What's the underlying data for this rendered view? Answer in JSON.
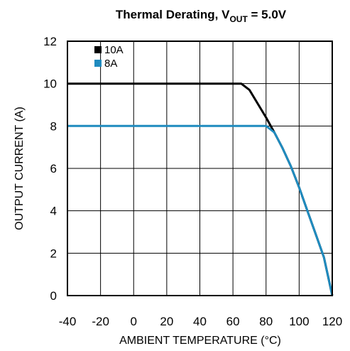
{
  "chart_data": {
    "type": "line",
    "title": {
      "main": "Thermal Derating, V",
      "sub": "OUT",
      "tail": " = 5.0V"
    },
    "xlabel": "AMBIENT TEMPERATURE (°C)",
    "ylabel": "OUTPUT CURRENT (A)",
    "xlim": [
      -40,
      120
    ],
    "ylim": [
      0,
      12
    ],
    "xticks": [
      -40,
      -20,
      0,
      20,
      40,
      60,
      80,
      100,
      120
    ],
    "yticks": [
      0,
      2,
      4,
      6,
      8,
      10,
      12
    ],
    "grid": true,
    "legend_position": "top-left",
    "series": [
      {
        "name": "10A",
        "color": "#000000",
        "x": [
          -40,
          65,
          70,
          75,
          80,
          85,
          90,
          95,
          100,
          105,
          110,
          115,
          120
        ],
        "y": [
          10,
          10,
          9.7,
          9.05,
          8.4,
          7.7,
          6.95,
          6.1,
          5.1,
          4.0,
          2.9,
          1.8,
          0
        ]
      },
      {
        "name": "8A",
        "color": "#1f8bbf",
        "x": [
          -40,
          80,
          85,
          90,
          95,
          100,
          105,
          110,
          115,
          120
        ],
        "y": [
          8,
          8,
          7.7,
          6.95,
          6.1,
          5.1,
          4.0,
          2.9,
          1.8,
          0
        ]
      }
    ]
  }
}
